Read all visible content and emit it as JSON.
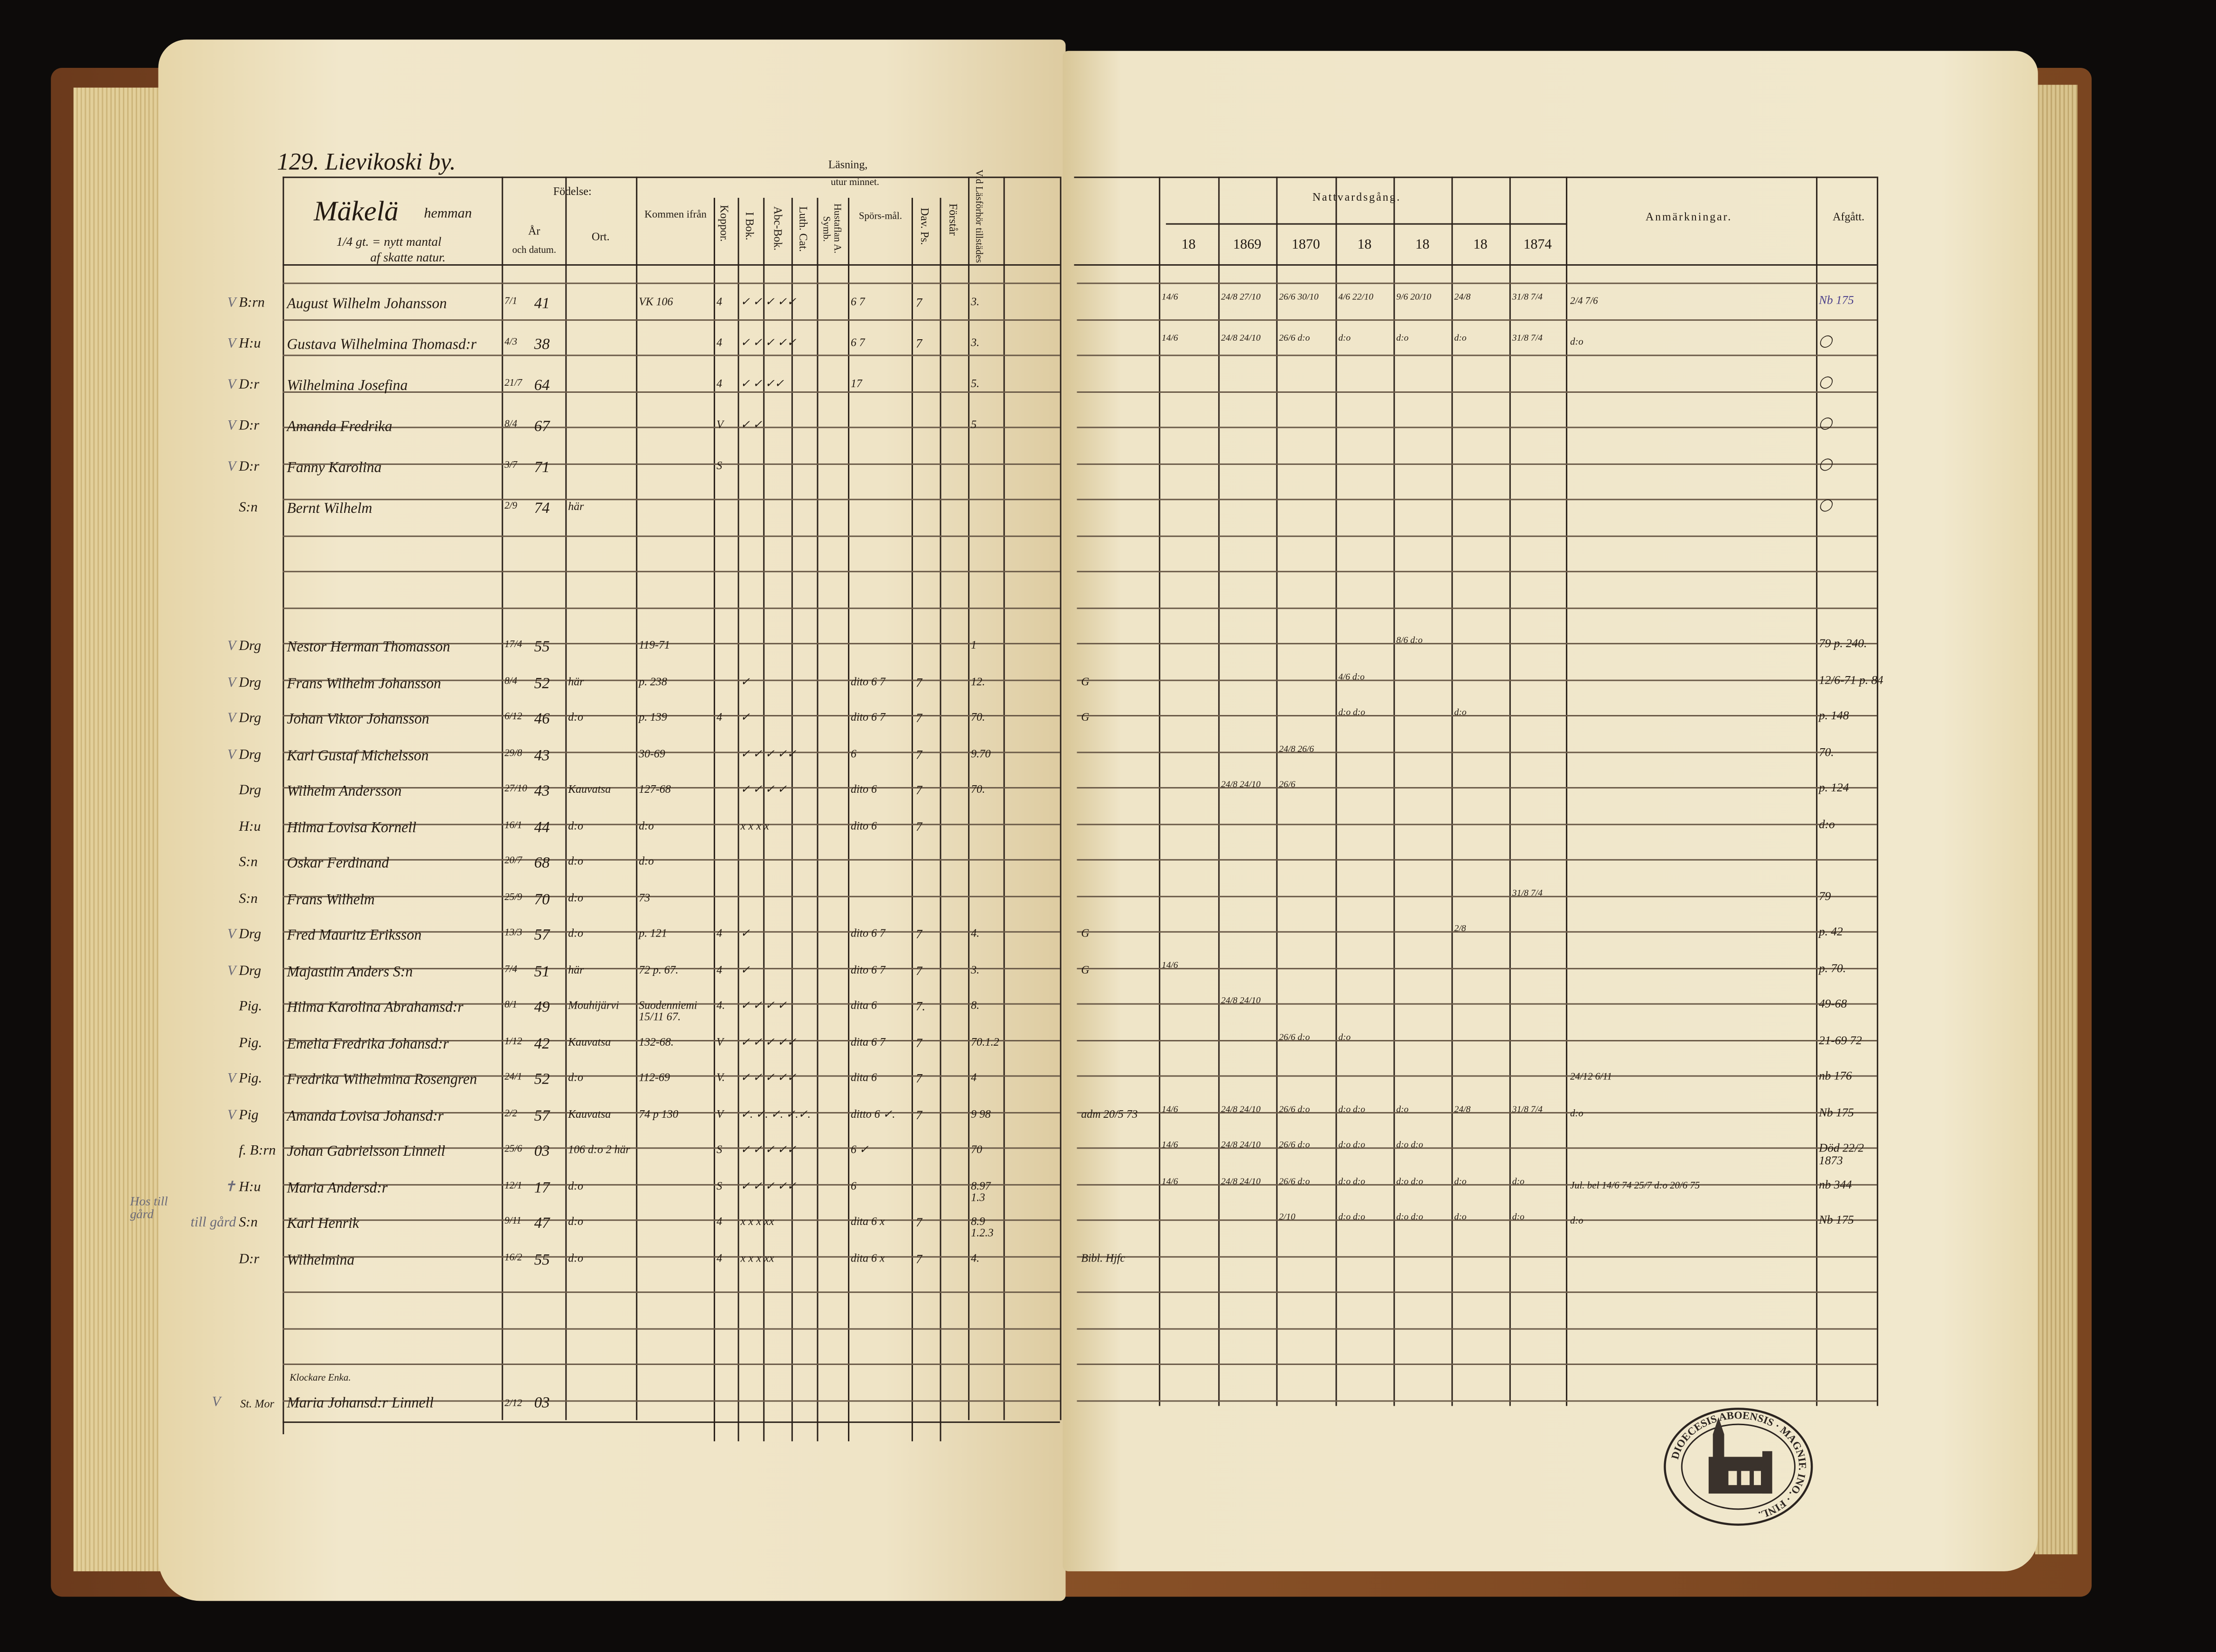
{
  "left_page": {
    "page_heading": "129. Lievikoski by.",
    "homestead": {
      "name": "Mäkelä",
      "suffix": "hemman",
      "line2": "1/4 gt. = nytt mantal",
      "line3": "af skatte natur."
    },
    "headers": {
      "fodelse": "Födelse:",
      "ar": "År",
      "och_datum": "och datum.",
      "ort": "Ort.",
      "kommen": "Kommen ifrån",
      "koppor": "Koppor.",
      "lasning": "Läsning,",
      "utur_minnet": "utur minnet.",
      "i_bok": "I Bok.",
      "abc_bok": "Abc-Bok.",
      "luth_cat": "Luth. Cat.",
      "hustaflan": "Hustaflan A. Symb.",
      "sporsmal": "Spörs-mål.",
      "dav_ps": "Dav. Ps.",
      "forstar": "Förstår",
      "lasforhor": "Vid Läsförhör tillstädes"
    },
    "groups": [
      [
        {
          "mark": "V",
          "title": "B:rn",
          "name": "August Wilhelm Johansson",
          "day_month": "7/1",
          "year": "41",
          "place": "",
          "from": "VK 106",
          "koppor": "4",
          "reading": "✓ ✓ ✓ ✓✓",
          "sporsmal": "6 7",
          "dav": "7",
          "lasforhor": "3."
        },
        {
          "mark": "V",
          "title": "H:u",
          "name": "Gustava Wilhelmina Thomasd:r",
          "day_month": "4/3",
          "year": "38",
          "place": "",
          "from": "",
          "koppor": "4",
          "reading": "✓ ✓ ✓ ✓✓",
          "sporsmal": "6 7",
          "dav": "7",
          "lasforhor": "3."
        },
        {
          "mark": "V",
          "title": "D:r",
          "name": "Wilhelmina Josefina",
          "day_month": "21/7",
          "year": "64",
          "place": "",
          "from": "",
          "koppor": "4",
          "reading": "✓ ✓ ✓✓",
          "sporsmal": "17",
          "dav": "",
          "lasforhor": "5."
        },
        {
          "mark": "V",
          "title": "D:r",
          "name": "Amanda Fredrika",
          "day_month": "8/4",
          "year": "67",
          "place": "",
          "from": "",
          "koppor": "V",
          "reading": "✓ ✓",
          "sporsmal": "",
          "dav": "",
          "lasforhor": "5"
        },
        {
          "mark": "V",
          "title": "D:r",
          "name": "Fanny Karolina",
          "day_month": "3/7",
          "year": "71",
          "place": "",
          "from": "",
          "koppor": "S",
          "reading": "",
          "sporsmal": "",
          "dav": "",
          "lasforhor": ""
        },
        {
          "mark": "",
          "title": "S:n",
          "name": "Bernt Wilhelm",
          "day_month": "2/9",
          "year": "74",
          "place": "här",
          "from": "",
          "koppor": "",
          "reading": "",
          "sporsmal": "",
          "dav": "",
          "lasforhor": ""
        }
      ],
      [
        {
          "mark": "V",
          "title": "Drg",
          "name": "Nestor Herman Thomasson",
          "day_month": "17/4",
          "year": "55",
          "place": "",
          "from": "119-71",
          "koppor": "",
          "reading": "",
          "sporsmal": "",
          "dav": "",
          "lasforhor": "1"
        },
        {
          "mark": "V",
          "title": "Drg",
          "name": "Frans Wilhelm Johansson",
          "day_month": "8/4",
          "year": "52",
          "place": "här",
          "from": "p. 238",
          "koppor": "",
          "reading": "✓",
          "sporsmal": "dito 6 7",
          "dav": "7",
          "lasforhor": "12."
        },
        {
          "mark": "V",
          "title": "Drg",
          "name": "Johan Viktor Johansson",
          "day_month": "6/12",
          "year": "46",
          "place": "d:o",
          "from": "p. 139",
          "koppor": "4",
          "reading": "✓",
          "sporsmal": "dito 6 7",
          "dav": "7",
          "lasforhor": "70."
        },
        {
          "mark": "V",
          "title": "Drg",
          "name": "Karl Gustaf Michelsson",
          "day_month": "29/8",
          "year": "43",
          "place": "",
          "from": "30-69",
          "koppor": "",
          "reading": "✓ ✓ ✓ ✓✓",
          "sporsmal": "6",
          "dav": "7",
          "lasforhor": "9.70"
        },
        {
          "mark": "",
          "title": "Drg",
          "name": "Wilhelm Andersson",
          "day_month": "27/10",
          "year": "43",
          "place": "Kauvatsa",
          "from": "127-68",
          "koppor": "",
          "reading": "✓ ✓ ✓ ✓",
          "sporsmal": "dito 6",
          "dav": "7",
          "lasforhor": "70."
        },
        {
          "mark": "",
          "title": "H:u",
          "name": "Hilma Lovisa Kornell",
          "day_month": "16/1",
          "year": "44",
          "place": "d:o",
          "from": "d:o",
          "koppor": "",
          "reading": "x x x x",
          "sporsmal": "dito 6",
          "dav": "7",
          "lasforhor": ""
        },
        {
          "mark": "",
          "title": "S:n",
          "name": "Oskar Ferdinand",
          "day_month": "20/7",
          "year": "68",
          "place": "d:o",
          "from": "d:o",
          "koppor": "",
          "reading": "",
          "sporsmal": "",
          "dav": "",
          "lasforhor": ""
        },
        {
          "mark": "",
          "title": "S:n",
          "name": "Frans Wilhelm",
          "day_month": "25/9",
          "year": "70",
          "place": "d:o",
          "from": "73",
          "koppor": "",
          "reading": "",
          "sporsmal": "",
          "dav": "",
          "lasforhor": ""
        },
        {
          "mark": "V",
          "title": "Drg",
          "name": "Fred Mauritz Eriksson",
          "day_month": "13/3",
          "year": "57",
          "place": "d:o",
          "from": "p. 121",
          "koppor": "4",
          "reading": "✓",
          "sporsmal": "dito 6 7",
          "dav": "7",
          "lasforhor": "4."
        },
        {
          "mark": "V",
          "title": "Drg",
          "name": "Majastiin Anders S:n",
          "day_month": "7/4",
          "year": "51",
          "place": "här",
          "from": "72 p. 67.",
          "koppor": "4",
          "reading": "✓",
          "sporsmal": "dito 6 7",
          "dav": "7",
          "lasforhor": "3."
        },
        {
          "mark": "",
          "title": "Pig.",
          "name": "Hilma Karolina Abrahamsd:r",
          "day_month": "8/1",
          "year": "49",
          "place": "Mouhijärvi",
          "from": "Suodenniemi 15/11 67.",
          "koppor": "4.",
          "reading": "✓ ✓ ✓ ✓",
          "sporsmal": "dita 6",
          "dav": "7.",
          "lasforhor": "8."
        },
        {
          "mark": "",
          "title": "Pig.",
          "name": "Emelia Fredrika Johansd:r",
          "day_month": "1/12",
          "year": "42",
          "place": "Kauvatsa",
          "from": "132-68.",
          "koppor": "V",
          "reading": "✓ ✓ ✓ ✓✓",
          "sporsmal": "dita 6 7",
          "dav": "7",
          "lasforhor": "70.1.2"
        },
        {
          "mark": "V",
          "title": "Pig.",
          "name": "Fredrika Wilhelmina Rosengren",
          "day_month": "24/1",
          "year": "52",
          "place": "d:o",
          "from": "112-69",
          "koppor": "V.",
          "reading": "✓ ✓ ✓ ✓✓",
          "sporsmal": "dita 6",
          "dav": "7",
          "lasforhor": "4"
        },
        {
          "mark": "V",
          "title": "Pig",
          "name": "Amanda Lovisa Johansd:r",
          "day_month": "2/2",
          "year": "57",
          "place": "Kauvatsa",
          "from": "74 p 130",
          "koppor": "V",
          "reading": "✓. ✓. ✓. ✓.✓.",
          "sporsmal": "ditto 6 ✓.",
          "dav": "7",
          "lasforhor": "9 98"
        },
        {
          "mark": "",
          "title": "f. B:rn",
          "name": "Johan Gabrielsson Linnell",
          "day_month": "25/6",
          "year": "03",
          "place": "106 d:o 2 här",
          "from": "",
          "koppor": "S",
          "reading": "✓ ✓ ✓ ✓✓",
          "sporsmal": "6 ✓",
          "dav": "",
          "lasforhor": "70"
        },
        {
          "mark": "✝",
          "title": "H:u",
          "name": "Maria Andersd:r",
          "day_month": "12/1",
          "year": "17",
          "place": "d:o",
          "from": "",
          "koppor": "S",
          "reading": "✓ ✓ ✓ ✓✓",
          "sporsmal": "6",
          "dav": "",
          "lasforhor": "8.97 1.3"
        },
        {
          "mark": "till gård",
          "title": "S:n",
          "name": "Karl Henrik",
          "day_month": "9/11",
          "year": "47",
          "place": "d:o",
          "from": "",
          "koppor": "4",
          "reading": "x x x xx",
          "sporsmal": "dita 6 x",
          "dav": "7",
          "lasforhor": "8.9 1.2.3"
        },
        {
          "mark": "",
          "title": "D:r",
          "name": "Wilhelmina",
          "day_month": "16/2",
          "year": "55",
          "place": "d:o",
          "from": "",
          "koppor": "4",
          "reading": "x x x xx",
          "sporsmal": "dita 6 x",
          "dav": "7",
          "lasforhor": "4."
        }
      ]
    ],
    "margin_note": "Hos till gård",
    "bottom_entry": {
      "heading": "Klockare Enka.",
      "mark": "V",
      "title": "St. Mor",
      "name": "Maria Johansd:r Linnell",
      "day_month": "2/12",
      "year": "03"
    }
  },
  "right_page": {
    "headers": {
      "nattvardsgang": "Nattvardsgång.",
      "years": [
        "18",
        "1869",
        "1870",
        "18",
        "18",
        "18",
        "1874"
      ],
      "anmarkningar": "Anmärkningar.",
      "afgatt": "Afgått."
    },
    "rows": [
      [
        {
          "note": "",
          "nattvard": [
            "14/6",
            "24/8 27/10",
            "26/6 30/10",
            "4/6 22/10",
            "9/6 20/10",
            "24/8",
            "31/8 7/4"
          ],
          "anm": "2/4 7/6",
          "afgatt": "Nb 175"
        },
        {
          "note": "",
          "nattvard": [
            "14/6",
            "24/8 24/10",
            "26/6 d:o",
            "d:o",
            "d:o",
            "d:o",
            "31/8 7/4"
          ],
          "anm": "d:o",
          "afgatt": "◯"
        },
        {
          "note": "",
          "nattvard": [
            "",
            "",
            "",
            "",
            "",
            "",
            ""
          ],
          "anm": "",
          "afgatt": "◯"
        },
        {
          "note": "",
          "nattvard": [
            "",
            "",
            "",
            "",
            "",
            "",
            ""
          ],
          "anm": "",
          "afgatt": "◯"
        },
        {
          "note": "",
          "nattvard": [
            "",
            "",
            "",
            "",
            "",
            "",
            ""
          ],
          "anm": "",
          "afgatt": "◯"
        },
        {
          "note": "",
          "nattvard": [
            "",
            "",
            "",
            "",
            "",
            "",
            ""
          ],
          "anm": "",
          "afgatt": "◯"
        }
      ],
      [
        {
          "note": "",
          "nattvard": [
            "",
            "",
            "",
            "",
            "8/6 d:o",
            "",
            ""
          ],
          "anm": "",
          "afgatt": "79 p. 240."
        },
        {
          "note": "G",
          "nattvard": [
            "",
            "",
            "",
            "4/6 d:o",
            "",
            "",
            ""
          ],
          "anm": "",
          "afgatt": "12/6-71 p. 84"
        },
        {
          "note": "G",
          "nattvard": [
            "",
            "",
            "",
            "d:o d:o",
            "",
            "d:o",
            ""
          ],
          "anm": "",
          "afgatt": "p. 148"
        },
        {
          "note": "",
          "nattvard": [
            "",
            "",
            "24/8 26/6",
            "",
            "",
            "",
            ""
          ],
          "anm": "",
          "afgatt": "70."
        },
        {
          "note": "",
          "nattvard": [
            "",
            "24/8 24/10",
            "26/6",
            "",
            "",
            "",
            ""
          ],
          "anm": "",
          "afgatt": "p. 124"
        },
        {
          "note": "",
          "nattvard": [
            "",
            "",
            "",
            "",
            "",
            "",
            ""
          ],
          "anm": "",
          "afgatt": "d:o"
        },
        {
          "note": "",
          "nattvard": [
            "",
            "",
            "",
            "",
            "",
            "",
            ""
          ],
          "anm": "",
          "afgatt": ""
        },
        {
          "note": "",
          "nattvard": [
            "",
            "",
            "",
            "",
            "",
            "",
            "31/8 7/4"
          ],
          "anm": "",
          "afgatt": "79"
        },
        {
          "note": "G",
          "nattvard": [
            "",
            "",
            "",
            "",
            "",
            "2/8",
            ""
          ],
          "anm": "",
          "afgatt": "p. 42"
        },
        {
          "note": "G",
          "nattvard": [
            "14/6",
            "",
            "",
            "",
            "",
            "",
            ""
          ],
          "anm": "",
          "afgatt": "p. 70."
        },
        {
          "note": "",
          "nattvard": [
            "",
            "24/8 24/10",
            "",
            "",
            "",
            "",
            ""
          ],
          "anm": "",
          "afgatt": "49-68"
        },
        {
          "note": "",
          "nattvard": [
            "",
            "",
            "26/6 d:o",
            "d:o",
            "",
            "",
            ""
          ],
          "anm": "",
          "afgatt": "21-69 72"
        },
        {
          "note": "",
          "nattvard": [
            "",
            "",
            "",
            "",
            "",
            "",
            ""
          ],
          "anm": "24/12 6/11",
          "afgatt": "nb 176"
        },
        {
          "note": "adm 20/5 73",
          "nattvard": [
            "14/6",
            "24/8 24/10",
            "26/6 d:o",
            "d:o d:o",
            "d:o",
            "24/8",
            "31/8 7/4"
          ],
          "anm": "d:o",
          "afgatt": "Nb 175"
        },
        {
          "note": "",
          "nattvard": [
            "14/6",
            "24/8 24/10",
            "26/6 d:o",
            "d:o d:o",
            "d:o d:o",
            "",
            ""
          ],
          "anm": "",
          "afgatt": "Död 22/2 1873"
        },
        {
          "note": "",
          "nattvard": [
            "14/6",
            "24/8 24/10",
            "26/6 d:o",
            "d:o d:o",
            "d:o d:o",
            "d:o",
            "d:o"
          ],
          "anm": "Jul. bel 14/6 74 25/7 d:o 20/6 75",
          "afgatt": "nb 344"
        },
        {
          "note": "",
          "nattvard": [
            "",
            "",
            "2/10",
            "d:o d:o",
            "d:o d:o",
            "d:o",
            "d:o"
          ],
          "anm": "d:o",
          "afgatt": "Nb 175"
        },
        {
          "note": "Bibl. Hjfc",
          "nattvard": [
            "",
            "",
            "",
            "",
            "",
            "",
            ""
          ],
          "anm": "",
          "afgatt": ""
        }
      ]
    ],
    "stamp_text": "DIOECESIS ABOENSIS · MAGNIF. INO. · FINL."
  },
  "colors": {
    "paper": "#efe4c6",
    "ink": "#231a12",
    "cover": "#7a4520",
    "pencil": "#6b6a78",
    "purple_ink": "#4a3f8a"
  }
}
